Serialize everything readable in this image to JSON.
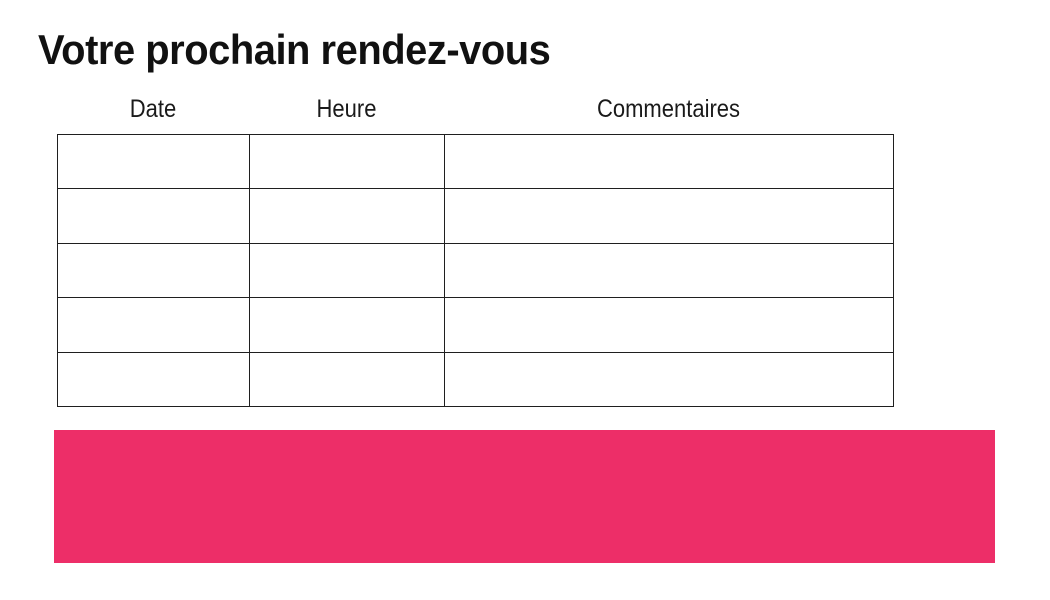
{
  "page": {
    "title": "Votre prochain rendez-vous"
  },
  "table": {
    "columns": [
      "Date",
      "Heure",
      "Commentaires"
    ],
    "rows": [
      [
        "",
        "",
        ""
      ],
      [
        "",
        "",
        ""
      ],
      [
        "",
        "",
        ""
      ],
      [
        "",
        "",
        ""
      ],
      [
        "",
        "",
        ""
      ]
    ]
  },
  "banner": {
    "text": ""
  },
  "colors": {
    "accent_pink": "#ED2E68",
    "table_border": "#1F1F1F",
    "text": "#1A1A1A",
    "background": "#FFFFFF"
  }
}
